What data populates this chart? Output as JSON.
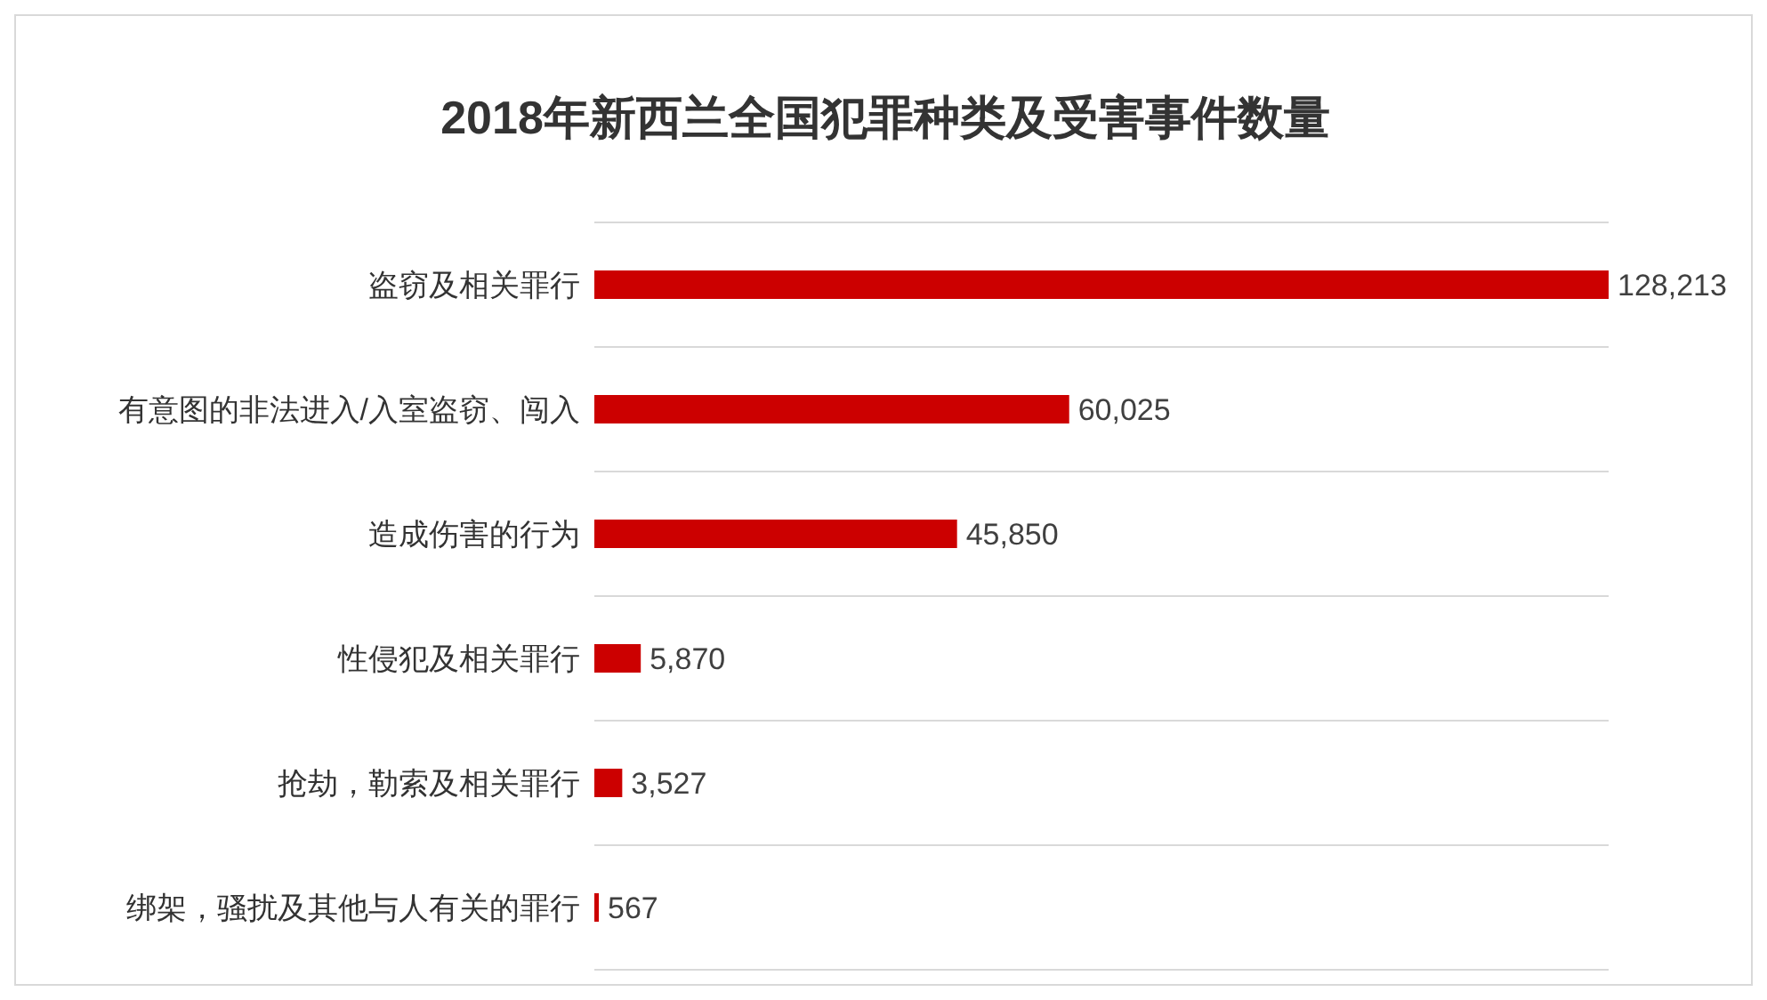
{
  "chart_data": {
    "type": "bar",
    "orientation": "horizontal",
    "title": "2018年新西兰全国犯罪种类及受害事件数量",
    "categories": [
      "盗窃及相关罪行",
      "有意图的非法进入/入室盗窃、闯入",
      "造成伤害的行为",
      "性侵犯及相关罪行",
      "抢劫，勒索及相关罪行",
      "绑架，骚扰及其他与人有关的罪行"
    ],
    "values": [
      128213,
      60025,
      45850,
      5870,
      3527,
      567
    ],
    "value_labels": [
      "128,213",
      "60,025",
      "45,850",
      "5,870",
      "3,527",
      "567"
    ],
    "color": "#cc0000",
    "grid": "y"
  }
}
